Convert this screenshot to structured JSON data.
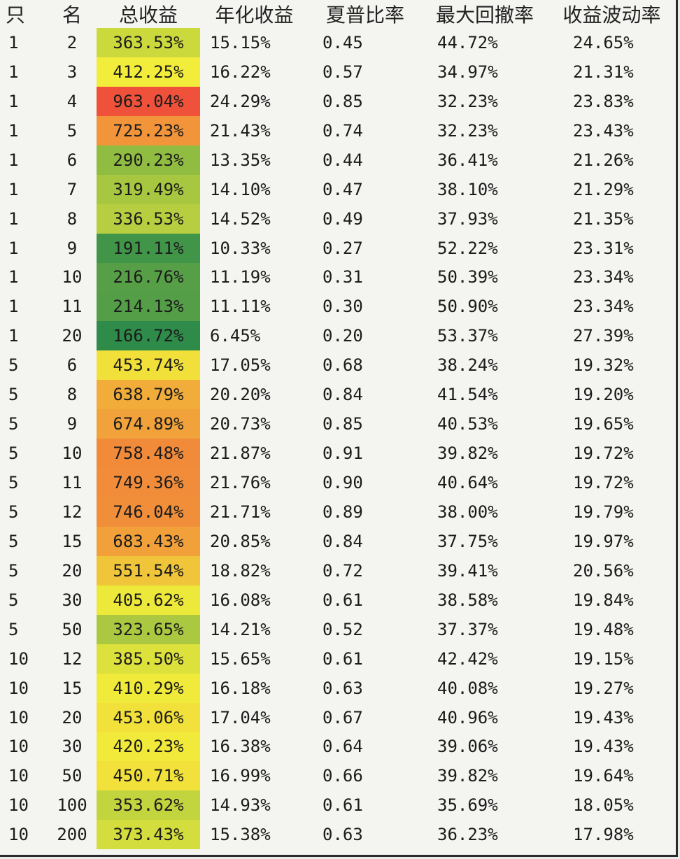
{
  "headers": [
    "只",
    "名",
    "总收益",
    "年化收益",
    "夏普比率",
    "最大回撤率",
    "收益波动率"
  ],
  "heat_colors": [
    "#2e8b4a",
    "#f2ec3a",
    "#f0513a"
  ],
  "rows": [
    [
      "1",
      "2",
      "363.53%",
      "15.15%",
      "0.45",
      "44.72%",
      "24.65%"
    ],
    [
      "1",
      "3",
      "412.25%",
      "16.22%",
      "0.57",
      "34.97%",
      "21.31%"
    ],
    [
      "1",
      "4",
      "963.04%",
      "24.29%",
      "0.85",
      "32.23%",
      "23.83%"
    ],
    [
      "1",
      "5",
      "725.23%",
      "21.43%",
      "0.74",
      "32.23%",
      "23.43%"
    ],
    [
      "1",
      "6",
      "290.23%",
      "13.35%",
      "0.44",
      "36.41%",
      "21.26%"
    ],
    [
      "1",
      "7",
      "319.49%",
      "14.10%",
      "0.47",
      "38.10%",
      "21.29%"
    ],
    [
      "1",
      "8",
      "336.53%",
      "14.52%",
      "0.49",
      "37.93%",
      "21.35%"
    ],
    [
      "1",
      "9",
      "191.11%",
      "10.33%",
      "0.27",
      "52.22%",
      "23.31%"
    ],
    [
      "1",
      "10",
      "216.76%",
      "11.19%",
      "0.31",
      "50.39%",
      "23.34%"
    ],
    [
      "1",
      "11",
      "214.13%",
      "11.11%",
      "0.30",
      "50.90%",
      "23.34%"
    ],
    [
      "1",
      "20",
      "166.72%",
      "6.45%",
      "0.20",
      "53.37%",
      "27.39%"
    ],
    [
      "5",
      "6",
      "453.74%",
      "17.05%",
      "0.68",
      "38.24%",
      "19.32%"
    ],
    [
      "5",
      "8",
      "638.79%",
      "20.20%",
      "0.84",
      "41.54%",
      "19.20%"
    ],
    [
      "5",
      "9",
      "674.89%",
      "20.73%",
      "0.85",
      "40.53%",
      "19.65%"
    ],
    [
      "5",
      "10",
      "758.48%",
      "21.87%",
      "0.91",
      "39.82%",
      "19.72%"
    ],
    [
      "5",
      "11",
      "749.36%",
      "21.76%",
      "0.90",
      "40.64%",
      "19.72%"
    ],
    [
      "5",
      "12",
      "746.04%",
      "21.71%",
      "0.89",
      "38.00%",
      "19.79%"
    ],
    [
      "5",
      "15",
      "683.43%",
      "20.85%",
      "0.84",
      "37.75%",
      "19.97%"
    ],
    [
      "5",
      "20",
      "551.54%",
      "18.82%",
      "0.72",
      "39.41%",
      "20.56%"
    ],
    [
      "5",
      "30",
      "405.62%",
      "16.08%",
      "0.61",
      "38.58%",
      "19.84%"
    ],
    [
      "5",
      "50",
      "323.65%",
      "14.21%",
      "0.52",
      "37.37%",
      "19.48%"
    ],
    [
      "10",
      "12",
      "385.50%",
      "15.65%",
      "0.61",
      "42.42%",
      "19.15%"
    ],
    [
      "10",
      "15",
      "410.29%",
      "16.18%",
      "0.63",
      "40.08%",
      "19.27%"
    ],
    [
      "10",
      "20",
      "453.06%",
      "17.04%",
      "0.67",
      "40.96%",
      "19.43%"
    ],
    [
      "10",
      "30",
      "420.23%",
      "16.38%",
      "0.64",
      "39.06%",
      "19.43%"
    ],
    [
      "10",
      "50",
      "450.71%",
      "16.99%",
      "0.66",
      "39.82%",
      "19.64%"
    ],
    [
      "10",
      "100",
      "353.62%",
      "14.93%",
      "0.61",
      "35.69%",
      "18.05%"
    ],
    [
      "10",
      "200",
      "373.43%",
      "15.38%",
      "0.63",
      "36.23%",
      "17.98%"
    ]
  ]
}
